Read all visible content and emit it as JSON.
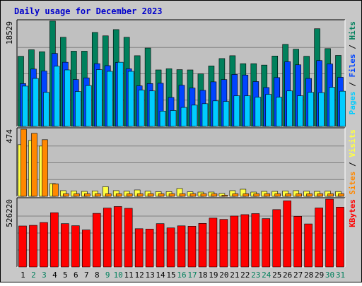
{
  "chart_data": {
    "title": "Daily usage for December 2023",
    "type": "bar",
    "categories": [
      "1",
      "2",
      "3",
      "4",
      "5",
      "6",
      "7",
      "8",
      "9",
      "10",
      "11",
      "12",
      "13",
      "14",
      "15",
      "16",
      "17",
      "18",
      "19",
      "20",
      "21",
      "22",
      "23",
      "24",
      "25",
      "26",
      "27",
      "28",
      "29",
      "30",
      "31"
    ],
    "weekend_days": [
      2,
      3,
      9,
      10,
      16,
      17,
      23,
      24,
      30,
      31
    ],
    "panels": [
      {
        "id": "hits",
        "max_label": "18529",
        "ylim": [
          0,
          18529
        ],
        "right_label": [
          {
            "text": "Pages",
            "color": "#00ccff"
          },
          {
            "text": " / ",
            "color": "#000000"
          },
          {
            "text": "Files",
            "color": "#0044ff"
          },
          {
            "text": " / ",
            "color": "#000000"
          },
          {
            "text": "Hits",
            "color": "#00805c"
          }
        ],
        "series": [
          {
            "name": "Hits",
            "color": "#00805c",
            "values": [
              12350,
              13500,
              13150,
              18550,
              15700,
              13250,
              13250,
              16550,
              15950,
              17050,
              15700,
              12450,
              13800,
              9950,
              10150,
              10000,
              9950,
              9250,
              10650,
              11950,
              12450,
              11050,
              11050,
              10800,
              12400,
              14450,
              13600,
              12350,
              17200,
              13700,
              12500
            ]
          },
          {
            "name": "Files",
            "color": "#0044ff",
            "values": [
              7550,
              10100,
              9750,
              12850,
              11300,
              8250,
              8550,
              11050,
              10700,
              11250,
              10150,
              7150,
              7550,
              7600,
              5100,
              7250,
              6750,
              6350,
              7850,
              8250,
              9150,
              9050,
              7900,
              6850,
              8600,
              11400,
              10850,
              8450,
              11600,
              11000,
              8650
            ]
          },
          {
            "name": "Pages",
            "color": "#00ccff",
            "values": [
              7100,
              8450,
              6000,
              10600,
              9950,
              6150,
              7200,
              10000,
              9700,
              11300,
              9700,
              6400,
              6250,
              2700,
              2800,
              3350,
              3750,
              4000,
              4500,
              4400,
              5400,
              5400,
              5150,
              5650,
              5150,
              6250,
              5400,
              6000,
              5950,
              6900,
              6200
            ]
          }
        ]
      },
      {
        "id": "visits",
        "max_label": "474",
        "ylim": [
          0,
          474
        ],
        "right_label": [
          {
            "text": "Sites",
            "color": "#ff8800"
          },
          {
            "text": " / ",
            "color": "#000000"
          },
          {
            "text": "Visits",
            "color": "#ffff44"
          }
        ],
        "series": [
          {
            "name": "Visits",
            "color": "#ffff44",
            "values": [
              365,
              395,
              355,
              90,
              40,
              38,
              35,
              38,
              68,
              40,
              36,
              45,
              36,
              33,
              33,
              55,
              32,
              30,
              30,
              20,
              40,
              50,
              30,
              35,
              35,
              38,
              40,
              36,
              35,
              36,
              34
            ]
          },
          {
            "name": "Sites",
            "color": "#ff8800",
            "values": [
              474,
              445,
              400,
              88,
              18,
              18,
              18,
              18,
              18,
              18,
              18,
              18,
              18,
              18,
              18,
              18,
              18,
              18,
              18,
              8,
              18,
              18,
              18,
              18,
              18,
              18,
              18,
              18,
              18,
              18,
              18
            ]
          }
        ]
      },
      {
        "id": "kbytes",
        "max_label": "526220",
        "ylim": [
          0,
          526220
        ],
        "right_label": [
          {
            "text": "KBytes",
            "color": "#ff0000"
          }
        ],
        "series": [
          {
            "name": "KBytes",
            "color": "#ff0000",
            "values": [
              318000,
              323000,
              345000,
              421000,
              336000,
              320000,
              287000,
              416000,
              457000,
              469000,
              455000,
              297000,
              294000,
              336000,
              303000,
              319000,
              316000,
              338000,
              379000,
              369000,
              395000,
              406000,
              414000,
              375000,
              445000,
              513000,
              393000,
              334000,
              458000,
              526220,
              464000
            ]
          }
        ]
      }
    ]
  }
}
